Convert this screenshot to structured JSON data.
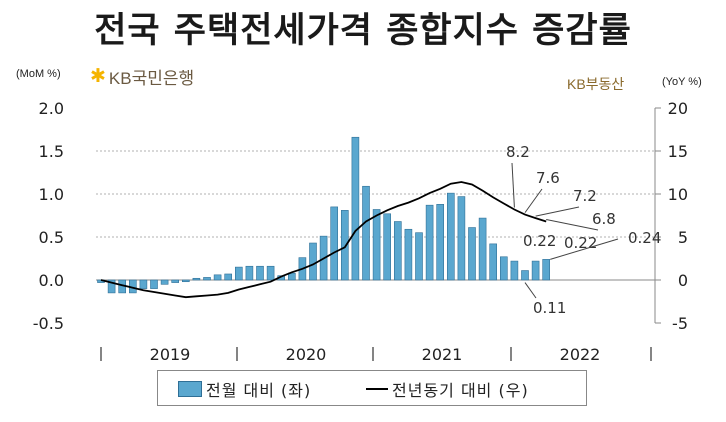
{
  "header": {
    "title": "전국 주택전세가격 종합지수 증감률",
    "unit_left": "(MoM %)",
    "unit_right": "(YoY %)",
    "kb_bank_logo": "KB국민은행",
    "kb_realestate_logo": "KB부동산"
  },
  "legend": {
    "bar_label": "전월 대비 (좌)",
    "line_label": "전년동기 대비 (우)"
  },
  "chart_data": {
    "type": "bar",
    "colors": {
      "bar": "#5aa7cf",
      "bar_edge": "#2f6f96",
      "line": "#000000",
      "grid": "#b0b0b0"
    },
    "x_tick_labels": [
      "2019",
      "2020",
      "2021",
      "2022"
    ],
    "y_left": {
      "range": [
        -0.5,
        2.0
      ],
      "ticks": [
        "2.0",
        "1.5",
        "1.0",
        "0.5",
        "0.0",
        "-0.5"
      ],
      "tick_values": [
        2.0,
        1.5,
        1.0,
        0.5,
        0.0,
        -0.5
      ]
    },
    "y_right": {
      "range": [
        -5,
        20
      ],
      "ticks": [
        "20",
        "15",
        "10",
        "5",
        "0",
        "-5"
      ],
      "tick_values": [
        20,
        15,
        10,
        5,
        0,
        -5
      ]
    },
    "grid": true,
    "series": [
      {
        "name": "전월 대비 (좌)",
        "type": "bar",
        "axis": "left",
        "values": [
          -0.03,
          -0.15,
          -0.15,
          -0.15,
          -0.1,
          -0.1,
          -0.05,
          -0.03,
          -0.02,
          0.02,
          0.03,
          0.06,
          0.07,
          0.15,
          0.16,
          0.16,
          0.16,
          0.05,
          0.08,
          0.26,
          0.43,
          0.51,
          0.85,
          0.81,
          1.66,
          1.09,
          0.82,
          0.77,
          0.68,
          0.59,
          0.55,
          0.87,
          0.88,
          1.01,
          0.97,
          0.61,
          0.72,
          0.42,
          0.27,
          0.22,
          0.11,
          0.22,
          0.24
        ]
      },
      {
        "name": "전년동기 대비 (우)",
        "type": "line",
        "axis": "right",
        "values": [
          0.0,
          -0.3,
          -0.6,
          -0.9,
          -1.2,
          -1.4,
          -1.6,
          -1.8,
          -2.0,
          -1.9,
          -1.8,
          -1.7,
          -1.5,
          -1.1,
          -0.8,
          -0.5,
          -0.2,
          0.4,
          0.9,
          1.3,
          1.8,
          2.5,
          3.2,
          3.8,
          5.7,
          6.8,
          7.5,
          8.1,
          8.6,
          9.0,
          9.5,
          10.1,
          10.6,
          11.2,
          11.4,
          11.1,
          10.4,
          9.6,
          8.9,
          8.2,
          7.6,
          7.2,
          6.8
        ]
      }
    ],
    "annotations": [
      {
        "series": "line",
        "index": 39,
        "text": "8.2"
      },
      {
        "series": "line",
        "index": 40,
        "text": "7.6"
      },
      {
        "series": "line",
        "index": 41,
        "text": "7.2"
      },
      {
        "series": "line",
        "index": 42,
        "text": "6.8"
      },
      {
        "series": "bar",
        "index": 39,
        "text": "0.22"
      },
      {
        "series": "bar",
        "index": 40,
        "text": "0.11"
      },
      {
        "series": "bar",
        "index": 41,
        "text": "0.22"
      },
      {
        "series": "bar",
        "index": 42,
        "text": "0.24"
      }
    ]
  }
}
